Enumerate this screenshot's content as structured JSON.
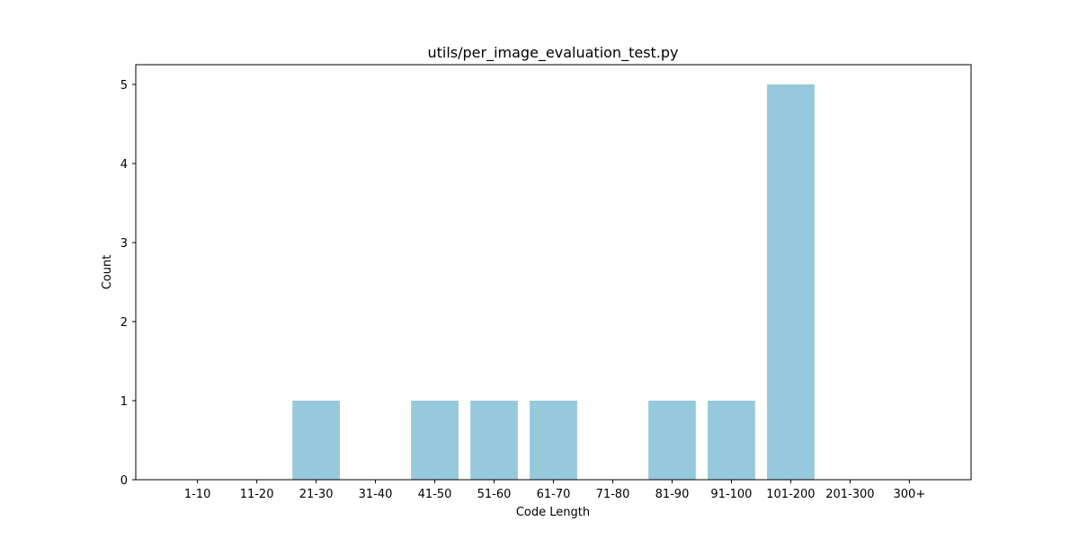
{
  "chart_data": {
    "type": "bar",
    "title": "utils/per_image_evaluation_test.py",
    "xlabel": "Code Length",
    "ylabel": "Count",
    "categories": [
      "1-10",
      "11-20",
      "21-30",
      "31-40",
      "41-50",
      "51-60",
      "61-70",
      "71-80",
      "81-90",
      "91-100",
      "101-200",
      "201-300",
      "300+"
    ],
    "values": [
      0,
      0,
      1,
      0,
      1,
      1,
      1,
      0,
      1,
      1,
      5,
      0,
      0
    ],
    "ylim": [
      0,
      5.25
    ],
    "yticks": [
      0,
      1,
      2,
      3,
      4,
      5
    ],
    "grid": false,
    "bar_color": "#96c9dc"
  }
}
